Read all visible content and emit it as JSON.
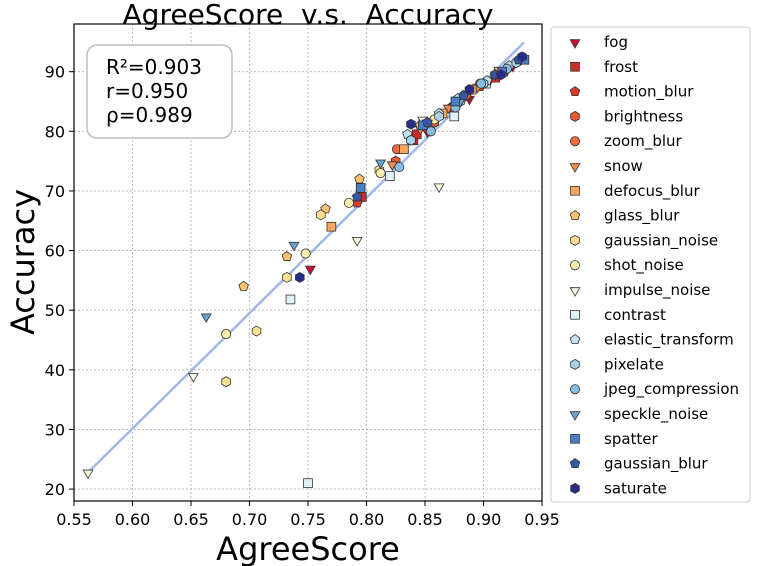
{
  "chart_data": {
    "type": "scatter",
    "title": "AgreeScore  v.s.  Accuracy",
    "xlabel": "AgreeScore",
    "ylabel": "Accuracy",
    "xlim": [
      0.55,
      0.95
    ],
    "ylim": [
      18,
      98
    ],
    "xticks": [
      "0.55",
      "0.60",
      "0.65",
      "0.70",
      "0.75",
      "0.80",
      "0.85",
      "0.90",
      "0.95"
    ],
    "xtick_values": [
      0.55,
      0.6,
      0.65,
      0.7,
      0.75,
      0.8,
      0.85,
      0.9,
      0.95
    ],
    "yticks": [
      "20",
      "30",
      "40",
      "50",
      "60",
      "70",
      "80",
      "90"
    ],
    "ytick_values": [
      20,
      30,
      40,
      50,
      60,
      70,
      80,
      90
    ],
    "grid": true,
    "stats": [
      "R²=0.903",
      "r=0.950",
      "ρ=0.989"
    ],
    "fit_line": {
      "x": [
        0.562,
        0.934
      ],
      "y": [
        22.8,
        94.8
      ],
      "color": "#a0b8e8"
    },
    "legend_position": "outside-right",
    "series": [
      {
        "name": "fog",
        "marker": "triangle-down",
        "color": "#c8102e",
        "points": [
          [
            0.752,
            57.0
          ],
          [
            0.852,
            80.0
          ],
          [
            0.888,
            85.5
          ],
          [
            0.905,
            88.5
          ],
          [
            0.925,
            91.0
          ]
        ]
      },
      {
        "name": "frost",
        "marker": "square",
        "color": "#d42a26",
        "points": [
          [
            0.796,
            69.0
          ],
          [
            0.84,
            78.5
          ],
          [
            0.843,
            79.5
          ],
          [
            0.885,
            86.0
          ],
          [
            0.91,
            89.0
          ]
        ]
      },
      {
        "name": "motion_blur",
        "marker": "pentagon",
        "color": "#dc3b2a",
        "points": [
          [
            0.792,
            68.0
          ],
          [
            0.838,
            78.5
          ],
          [
            0.872,
            84.0
          ],
          [
            0.897,
            87.5
          ],
          [
            0.918,
            90.0
          ]
        ]
      },
      {
        "name": "brightness",
        "marker": "hexagon",
        "color": "#e65a34",
        "points": [
          [
            0.825,
            75.0
          ],
          [
            0.858,
            81.5
          ],
          [
            0.885,
            86.0
          ],
          [
            0.91,
            89.5
          ],
          [
            0.932,
            92.0
          ]
        ]
      },
      {
        "name": "zoom_blur",
        "marker": "circle",
        "color": "#f06a3e",
        "points": [
          [
            0.826,
            77.0
          ],
          [
            0.852,
            81.0
          ],
          [
            0.874,
            84.0
          ],
          [
            0.897,
            88.0
          ],
          [
            0.92,
            90.5
          ]
        ]
      },
      {
        "name": "snow",
        "marker": "triangle-down",
        "color": "#f58a4a",
        "points": [
          [
            0.822,
            74.5
          ],
          [
            0.846,
            80.5
          ],
          [
            0.87,
            84.0
          ],
          [
            0.895,
            87.5
          ],
          [
            0.915,
            90.0
          ]
        ]
      },
      {
        "name": "defocus_blur",
        "marker": "square",
        "color": "#f8a85a",
        "points": [
          [
            0.77,
            64.0
          ],
          [
            0.832,
            77.0
          ],
          [
            0.865,
            83.0
          ],
          [
            0.89,
            87.0
          ],
          [
            0.913,
            90.0
          ]
        ]
      },
      {
        "name": "glass_blur",
        "marker": "pentagon",
        "color": "#fbc26e",
        "points": [
          [
            0.695,
            54.0
          ],
          [
            0.732,
            59.0
          ],
          [
            0.765,
            67.0
          ],
          [
            0.794,
            72.0
          ],
          [
            0.846,
            81.0
          ]
        ]
      },
      {
        "name": "gaussian_noise",
        "marker": "hexagon",
        "color": "#fde08e",
        "points": [
          [
            0.68,
            38.0
          ],
          [
            0.706,
            46.5
          ],
          [
            0.732,
            55.5
          ],
          [
            0.761,
            66.0
          ],
          [
            0.811,
            73.5
          ]
        ]
      },
      {
        "name": "shot_noise",
        "marker": "circle",
        "color": "#ffefae",
        "points": [
          [
            0.68,
            46.0
          ],
          [
            0.748,
            59.5
          ],
          [
            0.785,
            68.0
          ],
          [
            0.812,
            73.0
          ],
          [
            0.858,
            82.0
          ]
        ]
      },
      {
        "name": "impulse_noise",
        "marker": "triangle-down",
        "color": "#f8f8e0",
        "points": [
          [
            0.562,
            22.8
          ],
          [
            0.652,
            39.0
          ],
          [
            0.792,
            61.8
          ],
          [
            0.862,
            70.8
          ],
          [
            0.848,
            82.0
          ]
        ]
      },
      {
        "name": "contrast",
        "marker": "square",
        "color": "#e0f0f8",
        "points": [
          [
            0.75,
            21.0
          ],
          [
            0.735,
            51.8
          ],
          [
            0.82,
            72.5
          ],
          [
            0.875,
            82.5
          ],
          [
            0.902,
            88.0
          ]
        ]
      },
      {
        "name": "elastic_transform",
        "marker": "pentagon",
        "color": "#c4e2f0",
        "points": [
          [
            0.835,
            79.5
          ],
          [
            0.862,
            83.0
          ],
          [
            0.878,
            85.5
          ],
          [
            0.903,
            88.5
          ],
          [
            0.922,
            91.0
          ]
        ]
      },
      {
        "name": "pixelate",
        "marker": "hexagon",
        "color": "#a8d2ea",
        "points": [
          [
            0.838,
            78.5
          ],
          [
            0.862,
            82.5
          ],
          [
            0.88,
            85.0
          ],
          [
            0.9,
            88.0
          ],
          [
            0.928,
            91.5
          ]
        ]
      },
      {
        "name": "jpeg_compression",
        "marker": "circle",
        "color": "#88bce0",
        "points": [
          [
            0.828,
            74.0
          ],
          [
            0.855,
            80.0
          ],
          [
            0.876,
            84.0
          ],
          [
            0.898,
            88.0
          ],
          [
            0.92,
            90.5
          ]
        ]
      },
      {
        "name": "speckle_noise",
        "marker": "triangle-down",
        "color": "#6aa2d2",
        "points": [
          [
            0.663,
            49.0
          ],
          [
            0.738,
            61.0
          ],
          [
            0.812,
            74.8
          ],
          [
            0.852,
            81.5
          ],
          [
            0.88,
            85.0
          ]
        ]
      },
      {
        "name": "spatter",
        "marker": "square",
        "color": "#4a7fc4",
        "points": [
          [
            0.795,
            70.5
          ],
          [
            0.848,
            81.0
          ],
          [
            0.876,
            85.0
          ],
          [
            0.916,
            90.0
          ],
          [
            0.935,
            92.0
          ]
        ]
      },
      {
        "name": "gaussian_blur",
        "marker": "pentagon",
        "color": "#3656a8",
        "points": [
          [
            0.792,
            69.0
          ],
          [
            0.852,
            81.5
          ],
          [
            0.883,
            86.0
          ],
          [
            0.91,
            89.5
          ],
          [
            0.93,
            92.0
          ]
        ]
      },
      {
        "name": "saturate",
        "marker": "hexagon",
        "color": "#262c8a",
        "points": [
          [
            0.743,
            55.5
          ],
          [
            0.838,
            81.2
          ],
          [
            0.888,
            87.0
          ],
          [
            0.915,
            89.5
          ],
          [
            0.933,
            92.5
          ]
        ]
      }
    ]
  }
}
